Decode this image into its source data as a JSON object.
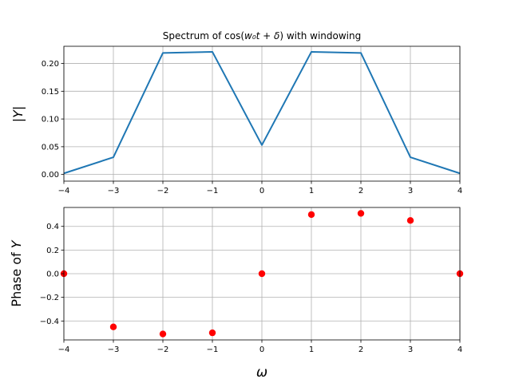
{
  "chart_data": [
    {
      "type": "line",
      "title": "Spectrum of cos(w₀t + δ) with windowing",
      "title_parts": {
        "prefix": "Spectrum of cos(",
        "math": "w₀t + δ",
        "suffix": ") with windowing"
      },
      "ylabel": "|Y|",
      "xlabel": "",
      "xlim": [
        -4,
        4
      ],
      "ylim": [
        -0.012,
        0.231
      ],
      "xticks": [
        "−4",
        "−3",
        "−2",
        "−1",
        "0",
        "1",
        "2",
        "3",
        "4"
      ],
      "yticks": [
        "0.00",
        "0.05",
        "0.10",
        "0.15",
        "0.20"
      ],
      "grid": true,
      "color": "#1f77b4",
      "x": [
        -4,
        -3,
        -2,
        -1,
        0,
        1,
        2,
        3,
        4
      ],
      "values": [
        0.002,
        0.031,
        0.219,
        0.221,
        0.053,
        0.221,
        0.219,
        0.031,
        0.002
      ]
    },
    {
      "type": "scatter",
      "title": "",
      "ylabel": "Phase of Y",
      "ylabel_parts": {
        "prefix": "Phase of ",
        "math": "Y"
      },
      "xlabel": "ω",
      "xlim": [
        -4,
        4
      ],
      "ylim": [
        -0.56,
        0.56
      ],
      "xticks": [
        "−4",
        "−3",
        "−2",
        "−1",
        "0",
        "1",
        "2",
        "3",
        "4"
      ],
      "yticks": [
        "−0.4",
        "−0.2",
        "0.0",
        "0.2",
        "0.4"
      ],
      "grid": true,
      "color": "#ff0000",
      "x": [
        -4,
        -3,
        -2,
        -1,
        0,
        1,
        2,
        3,
        4
      ],
      "values": [
        0.0,
        -0.45,
        -0.51,
        -0.5,
        0.0,
        0.5,
        0.51,
        0.45,
        0.0
      ]
    }
  ]
}
